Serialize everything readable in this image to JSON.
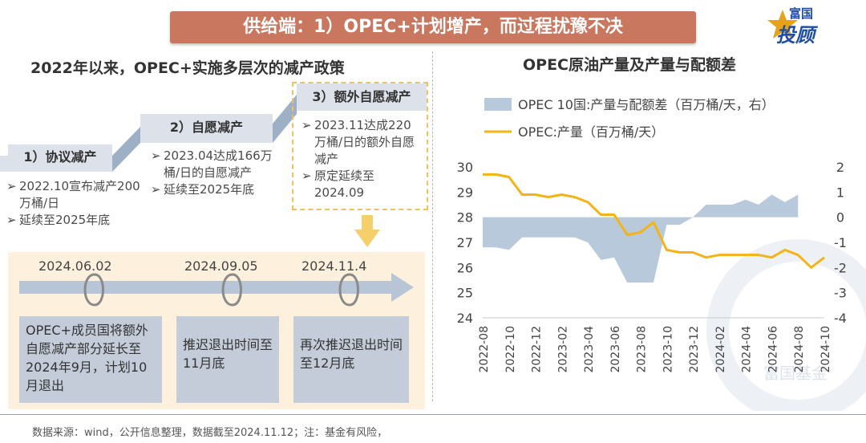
{
  "banner": "供给端：1）OPEC+计划增产，而过程扰豫不决",
  "logo": {
    "top": "富国",
    "bottom": "投顾"
  },
  "left": {
    "title": "2022年以来，OPEC+实施多层次的减产政策",
    "steps": [
      {
        "label": "1）协议减产",
        "bullets": [
          "2022.10宣布减产200万桶/日",
          "延续至2025年底"
        ]
      },
      {
        "label": "2）自愿减产",
        "bullets": [
          "2023.04达成166万桶/日的自愿减产",
          "延续至2025年底"
        ]
      },
      {
        "label": "3）额外自愿减产",
        "bullets": [
          "2023.11达成220万桶/日的额外自愿减产",
          "原定延续至2024.09"
        ]
      }
    ],
    "timeline": [
      {
        "date": "2024.06.02",
        "text": "OPEC+成员国将额外自愿减产部分延长至2024年9月，计划10月退出"
      },
      {
        "date": "2024.09.05",
        "text": "推迟退出时间至11月底"
      },
      {
        "date": "2024.11.4",
        "text": "再次推迟退出时间至12月底"
      }
    ]
  },
  "footer": "数据来源：wind，公开信息整理，数据截至2024.11.12；注：基金有风险，",
  "chart_data": {
    "type": "line",
    "title": "OPEC原油产量及产量与配额差",
    "x": [
      "2022-08",
      "2022-09",
      "2022-10",
      "2022-11",
      "2022-12",
      "2023-01",
      "2023-02",
      "2023-03",
      "2023-04",
      "2023-05",
      "2023-06",
      "2023-07",
      "2023-08",
      "2023-09",
      "2023-10",
      "2023-11",
      "2023-12",
      "2024-01",
      "2024-02",
      "2024-03",
      "2024-04",
      "2024-05",
      "2024-06",
      "2024-07",
      "2024-08",
      "2024-09",
      "2024-10"
    ],
    "x_tick_labels": [
      "2022-08",
      "2022-10",
      "2022-12",
      "2023-02",
      "2023-04",
      "2023-06",
      "2023-08",
      "2023-10",
      "2023-12",
      "2024-02",
      "2024-04",
      "2024-06",
      "2024-08",
      "2024-10"
    ],
    "series": [
      {
        "name": "OPEC 10国:产量与配额差（百万桶/天，右）",
        "type": "area",
        "axis": "right",
        "color": "#b9c9dc",
        "values": [
          -1.2,
          -1.2,
          -1.3,
          -0.8,
          -0.8,
          -0.8,
          -0.8,
          -0.8,
          -1.0,
          -1.7,
          -1.6,
          -2.6,
          -2.6,
          -2.6,
          -0.3,
          -0.3,
          0.0,
          0.5,
          0.5,
          0.5,
          0.7,
          0.5,
          0.9,
          0.6,
          0.9,
          null,
          null
        ]
      },
      {
        "name": "OPEC:产量（百万桶/天）",
        "type": "line",
        "axis": "left",
        "color": "#f2b416",
        "values": [
          29.7,
          29.7,
          29.6,
          28.9,
          28.9,
          28.8,
          28.9,
          28.8,
          28.6,
          28.1,
          28.1,
          27.3,
          27.4,
          27.8,
          26.7,
          26.6,
          26.6,
          26.4,
          26.5,
          26.5,
          26.5,
          26.5,
          26.4,
          26.7,
          26.5,
          26.0,
          26.4
        ]
      }
    ],
    "ylim_left": [
      24,
      30
    ],
    "ylim_right": [
      -4,
      2
    ],
    "yticks_left": [
      "24",
      "25",
      "26",
      "27",
      "28",
      "29",
      "30"
    ],
    "yticks_right": [
      "-4",
      "-3",
      "-2",
      "-1",
      "0",
      "1",
      "2"
    ],
    "legend_position": "top",
    "watermark": "富国基金"
  }
}
